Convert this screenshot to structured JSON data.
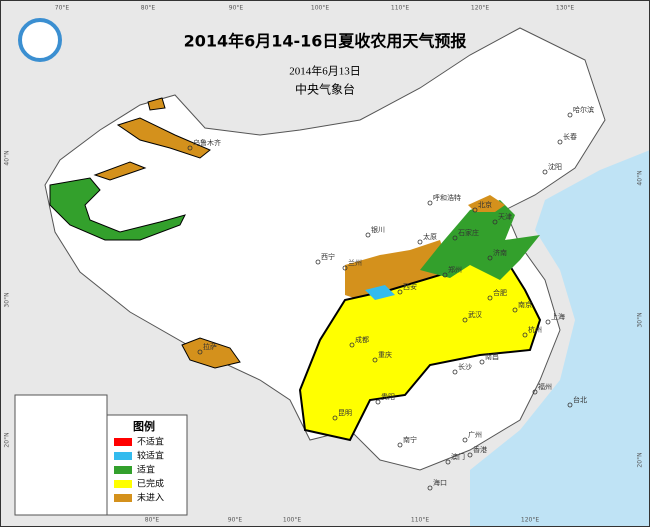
{
  "header": {
    "title": "2014年6月14-16日夏收农用天气预报",
    "date": "2014年6月13日",
    "issuer": "中央气象台"
  },
  "legend": {
    "title": "图例",
    "items": [
      {
        "label": "不适宜",
        "color": "#ff0000"
      },
      {
        "label": "较适宜",
        "color": "#33bbee"
      },
      {
        "label": "适宜",
        "color": "#33a02c"
      },
      {
        "label": "已完成",
        "color": "#ffff00"
      },
      {
        "label": "未进入",
        "color": "#d4911c"
      }
    ]
  },
  "lon_top": [
    "70°E",
    "80°E",
    "90°E",
    "100°E",
    "110°E",
    "120°E",
    "130°E"
  ],
  "lon_bottom": [
    "80°E",
    "90°E",
    "100°E",
    "110°E",
    "120°E"
  ],
  "lat_left": [
    "40°N",
    "30°N",
    "20°N"
  ],
  "lat_right": [
    "40°N",
    "30°N",
    "20°N"
  ],
  "cities": [
    "乌鲁木齐",
    "哈尔滨",
    "长春",
    "沈阳",
    "呼和浩特",
    "北京",
    "天津",
    "石家庄",
    "太原",
    "济南",
    "银川",
    "兰州",
    "西宁",
    "西安",
    "郑州",
    "合肥",
    "南京",
    "上海",
    "武汉",
    "成都",
    "重庆",
    "长沙",
    "南昌",
    "杭州",
    "福州",
    "贵阳",
    "昆明",
    "南宁",
    "广州",
    "香港",
    "澳门",
    "海口",
    "台北",
    "拉萨"
  ]
}
